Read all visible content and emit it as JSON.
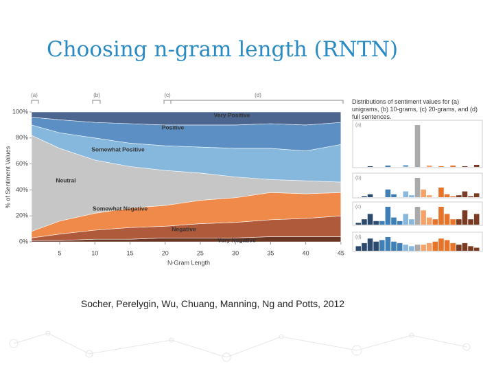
{
  "slide": {
    "title": "Choosing n-gram length (RNTN)",
    "citation": "Socher, Perelygin, Wu, Chuang, Manning, Ng and Potts, 2012"
  },
  "chart_data": [
    {
      "type": "area",
      "stacked": true,
      "x": [
        1,
        5,
        10,
        15,
        20,
        25,
        30,
        35,
        40,
        45
      ],
      "xlim": [
        1,
        45.5
      ],
      "xticks": [
        5,
        10,
        15,
        20,
        25,
        30,
        35,
        40,
        45
      ],
      "ylim": [
        0,
        100
      ],
      "yticks": [
        {
          "value": 0,
          "label": "0%"
        },
        {
          "value": 20,
          "label": "20%"
        },
        {
          "value": 40,
          "label": "40%"
        },
        {
          "value": 60,
          "label": "60%"
        },
        {
          "value": 80,
          "label": "80%"
        },
        {
          "value": 100,
          "label": "100%"
        }
      ],
      "xlabel": "N-Gram Length",
      "ylabel": "% of Sentiment Values",
      "annotations": [
        "(a)",
        "(b)",
        "(c)",
        "(d)"
      ],
      "series": [
        {
          "name": "Very Negative",
          "color": "#6b3524",
          "values": [
            1,
            1,
            2,
            2,
            3,
            3,
            3,
            4,
            4,
            4
          ]
        },
        {
          "name": "Negative",
          "color": "#b05a3c",
          "values": [
            2,
            5,
            7,
            9,
            9,
            11,
            12,
            13,
            14,
            16
          ]
        },
        {
          "name": "Somewhat Negative",
          "color": "#f08a4b",
          "values": [
            5,
            10,
            13,
            15,
            16,
            18,
            19,
            21,
            19,
            18
          ]
        },
        {
          "name": "Neutral",
          "color": "#c6c6c6",
          "values": [
            74,
            56,
            41,
            32,
            27,
            21,
            16,
            10,
            10,
            8
          ]
        },
        {
          "name": "Somewhat Positive",
          "color": "#86b8de",
          "values": [
            8,
            12,
            17,
            18,
            19,
            20,
            22,
            24,
            23,
            29
          ]
        },
        {
          "name": "Positive",
          "color": "#5c8fc4",
          "values": [
            6,
            10,
            12,
            15,
            16,
            17,
            18,
            19,
            20,
            17
          ]
        },
        {
          "name": "Very Positive",
          "color": "#4d6690",
          "values": [
            4,
            6,
            8,
            9,
            10,
            10,
            10,
            9,
            10,
            8
          ]
        }
      ]
    },
    {
      "type": "bar",
      "title": "Distributions of sentiment values for (a) unigrams, (b) 10-grams, (c) 20-grams, and (d) full sentences.",
      "label": "(a)",
      "categories": [
        null,
        null,
        null,
        null,
        null,
        null,
        null,
        null,
        null,
        null,
        null,
        null,
        null,
        null,
        null,
        null,
        null,
        null,
        null,
        null,
        null
      ],
      "values": [
        0,
        0,
        1,
        0,
        0,
        2,
        0,
        0,
        3,
        0,
        60,
        0,
        2,
        0,
        1,
        0,
        2,
        0,
        1,
        0,
        3
      ],
      "colors": [
        "#2c4a6e",
        "#2c4a6e",
        "#2c4a6e",
        "#2c4a6e",
        "#3f7fb5",
        "#3f7fb5",
        "#3f7fb5",
        "#3f7fb5",
        "#8ab8dc",
        "#8ab8dc",
        "#aaaaaa",
        "#f5a36b",
        "#f5a36b",
        "#e8742a",
        "#e8742a",
        "#e8742a",
        "#e8742a",
        "#7a3b22",
        "#7a3b22",
        "#7a3b22",
        "#7a3b22"
      ]
    },
    {
      "type": "bar",
      "label": "(b)",
      "categories": [
        null,
        null,
        null,
        null,
        null,
        null,
        null,
        null,
        null,
        null,
        null,
        null,
        null,
        null,
        null,
        null,
        null,
        null,
        null,
        null,
        null
      ],
      "values": [
        0,
        1,
        3,
        0,
        0,
        8,
        3,
        0,
        6,
        2,
        20,
        8,
        2,
        0,
        10,
        3,
        1,
        2,
        6,
        1,
        4
      ],
      "colors": [
        "#2c4a6e",
        "#2c4a6e",
        "#2c4a6e",
        "#2c4a6e",
        "#3f7fb5",
        "#3f7fb5",
        "#3f7fb5",
        "#3f7fb5",
        "#8ab8dc",
        "#8ab8dc",
        "#aaaaaa",
        "#f5a36b",
        "#f5a36b",
        "#e8742a",
        "#e8742a",
        "#e8742a",
        "#e8742a",
        "#7a3b22",
        "#7a3b22",
        "#7a3b22",
        "#7a3b22"
      ]
    },
    {
      "type": "bar",
      "label": "(c)",
      "categories": [
        null,
        null,
        null,
        null,
        null,
        null,
        null,
        null,
        null,
        null,
        null,
        null,
        null,
        null,
        null,
        null,
        null,
        null,
        null,
        null,
        null
      ],
      "values": [
        1,
        3,
        6,
        2,
        2,
        10,
        4,
        2,
        6,
        3,
        10,
        8,
        4,
        3,
        10,
        6,
        3,
        3,
        8,
        3,
        6
      ],
      "colors": [
        "#2c4a6e",
        "#2c4a6e",
        "#2c4a6e",
        "#2c4a6e",
        "#3f7fb5",
        "#3f7fb5",
        "#3f7fb5",
        "#3f7fb5",
        "#8ab8dc",
        "#8ab8dc",
        "#aaaaaa",
        "#f5a36b",
        "#f5a36b",
        "#e8742a",
        "#e8742a",
        "#e8742a",
        "#e8742a",
        "#7a3b22",
        "#7a3b22",
        "#7a3b22",
        "#7a3b22"
      ]
    },
    {
      "type": "bar",
      "label": "(d)",
      "categories": [
        null,
        null,
        null,
        null,
        null,
        null,
        null,
        null,
        null,
        null,
        null,
        null,
        null,
        null,
        null,
        null,
        null,
        null,
        null,
        null,
        null
      ],
      "values": [
        6,
        10,
        16,
        12,
        14,
        18,
        12,
        10,
        8,
        6,
        8,
        8,
        10,
        12,
        16,
        14,
        10,
        8,
        10,
        6,
        4
      ],
      "colors": [
        "#2c4a6e",
        "#2c4a6e",
        "#2c4a6e",
        "#2c4a6e",
        "#3f7fb5",
        "#3f7fb5",
        "#3f7fb5",
        "#3f7fb5",
        "#8ab8dc",
        "#8ab8dc",
        "#aaaaaa",
        "#f5a36b",
        "#f5a36b",
        "#e8742a",
        "#e8742a",
        "#e8742a",
        "#e8742a",
        "#7a3b22",
        "#7a3b22",
        "#7a3b22",
        "#7a3b22"
      ]
    }
  ]
}
